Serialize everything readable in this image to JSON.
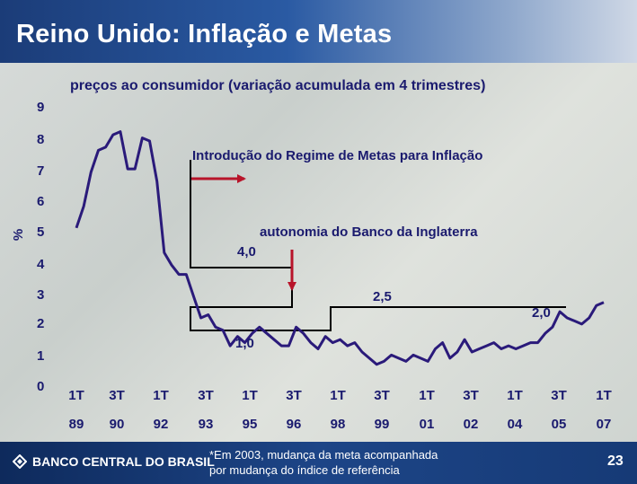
{
  "title": "Reino Unido: Inflação e Metas",
  "chart_data": {
    "type": "line",
    "title": "preços ao consumidor (variação acumulada em 4 trimestres)",
    "ylabel": "%",
    "ylim": [
      0,
      9
    ],
    "yticks": [
      "9",
      "8",
      "7",
      "6",
      "5",
      "4",
      "3",
      "2",
      "1",
      "0"
    ],
    "x_quarter_labels": [
      "1T",
      "3T",
      "1T",
      "3T",
      "1T",
      "3T",
      "1T",
      "3T",
      "1T",
      "3T",
      "1T",
      "3T",
      "1T"
    ],
    "x_year_labels": [
      "89",
      "90",
      "92",
      "93",
      "95",
      "96",
      "98",
      "99",
      "01",
      "02",
      "04",
      "05",
      "07"
    ],
    "series": [
      {
        "color": "#2a1a7a",
        "x": [
          1989.0,
          1989.25,
          1989.5,
          1989.75,
          1990.0,
          1990.25,
          1990.5,
          1990.75,
          1991.0,
          1991.25,
          1991.5,
          1991.75,
          1992.0,
          1992.25,
          1992.5,
          1992.75,
          1993.0,
          1993.25,
          1993.5,
          1993.75,
          1994.0,
          1994.25,
          1994.5,
          1994.75,
          1995.0,
          1995.25,
          1995.5,
          1995.75,
          1996.0,
          1996.25,
          1996.5,
          1996.75,
          1997.0,
          1997.25,
          1997.5,
          1997.75,
          1998.0,
          1998.25,
          1998.5,
          1998.75,
          1999.0,
          1999.25,
          1999.5,
          1999.75,
          2000.0,
          2000.25,
          2000.5,
          2000.75,
          2001.0,
          2001.25,
          2001.5,
          2001.75,
          2002.0,
          2002.25,
          2002.5,
          2002.75,
          2003.0,
          2003.25,
          2003.5,
          2003.75,
          2004.0,
          2004.25,
          2004.5,
          2004.75,
          2005.0,
          2005.25,
          2005.5,
          2005.75,
          2006.0,
          2006.25,
          2006.5,
          2006.75,
          2007.0
        ],
        "y": [
          5.1,
          5.8,
          6.9,
          7.6,
          7.7,
          8.1,
          8.2,
          7.0,
          7.0,
          8.0,
          7.9,
          6.6,
          4.3,
          3.9,
          3.6,
          3.6,
          2.9,
          2.2,
          2.3,
          1.9,
          1.8,
          1.3,
          1.6,
          1.4,
          1.7,
          1.9,
          1.7,
          1.5,
          1.3,
          1.3,
          1.9,
          1.7,
          1.4,
          1.2,
          1.6,
          1.4,
          1.5,
          1.3,
          1.4,
          1.1,
          0.9,
          0.7,
          0.8,
          1.0,
          0.9,
          0.8,
          1.0,
          0.9,
          0.8,
          1.2,
          1.4,
          0.9,
          1.1,
          1.5,
          1.1,
          1.2,
          1.3,
          1.4,
          1.2,
          1.3,
          1.2,
          1.3,
          1.4,
          1.4,
          1.7,
          1.9,
          2.4,
          2.2,
          2.1,
          2.0,
          2.2,
          2.6,
          2.7
        ]
      }
    ],
    "target_steps": [
      {
        "label": "4,0",
        "value": 4.0
      },
      {
        "label": "2,5",
        "value": 2.5
      },
      {
        "label": "1,0",
        "value": 1.0
      },
      {
        "label": "2,0",
        "value": 2.0
      }
    ]
  },
  "annotations": {
    "regime": "Introdução do Regime de Metas para Inflação",
    "autonomy": "autonomia do Banco da Inglaterra"
  },
  "footnote_line1": "*Em 2003, mudança da meta acompanhada",
  "footnote_line2": "por mudança do índice de referência",
  "footer": {
    "logo_text": "BANCO CENTRAL DO BRASIL",
    "page_number": "23"
  },
  "colors": {
    "title_bar": "#1b3c78",
    "text": "#1a1a6e",
    "line": "#2a1a7a",
    "arrow": "#b8142a",
    "target": "#000000"
  }
}
